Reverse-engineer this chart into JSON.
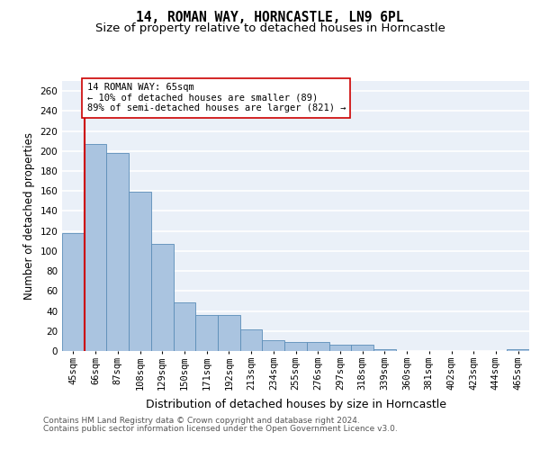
{
  "title1": "14, ROMAN WAY, HORNCASTLE, LN9 6PL",
  "title2": "Size of property relative to detached houses in Horncastle",
  "xlabel": "Distribution of detached houses by size in Horncastle",
  "ylabel": "Number of detached properties",
  "categories": [
    "45sqm",
    "66sqm",
    "87sqm",
    "108sqm",
    "129sqm",
    "150sqm",
    "171sqm",
    "192sqm",
    "213sqm",
    "234sqm",
    "255sqm",
    "276sqm",
    "297sqm",
    "318sqm",
    "339sqm",
    "360sqm",
    "381sqm",
    "402sqm",
    "423sqm",
    "444sqm",
    "465sqm"
  ],
  "values": [
    118,
    207,
    198,
    159,
    107,
    49,
    36,
    36,
    22,
    11,
    9,
    9,
    6,
    6,
    2,
    0,
    0,
    0,
    0,
    0,
    2
  ],
  "bar_color": "#aac4e0",
  "bar_edge_color": "#5b8db8",
  "vline_color": "#cc0000",
  "annotation_text": "14 ROMAN WAY: 65sqm\n← 10% of detached houses are smaller (89)\n89% of semi-detached houses are larger (821) →",
  "annotation_box_color": "white",
  "annotation_border_color": "#cc0000",
  "ylim": [
    0,
    270
  ],
  "yticks": [
    0,
    20,
    40,
    60,
    80,
    100,
    120,
    140,
    160,
    180,
    200,
    220,
    240,
    260
  ],
  "background_color": "#eaf0f8",
  "grid_color": "white",
  "footer_line1": "Contains HM Land Registry data © Crown copyright and database right 2024.",
  "footer_line2": "Contains public sector information licensed under the Open Government Licence v3.0.",
  "title1_fontsize": 10.5,
  "title2_fontsize": 9.5,
  "xlabel_fontsize": 9,
  "ylabel_fontsize": 8.5,
  "tick_fontsize": 7.5,
  "annotation_fontsize": 7.5,
  "footer_fontsize": 6.5
}
